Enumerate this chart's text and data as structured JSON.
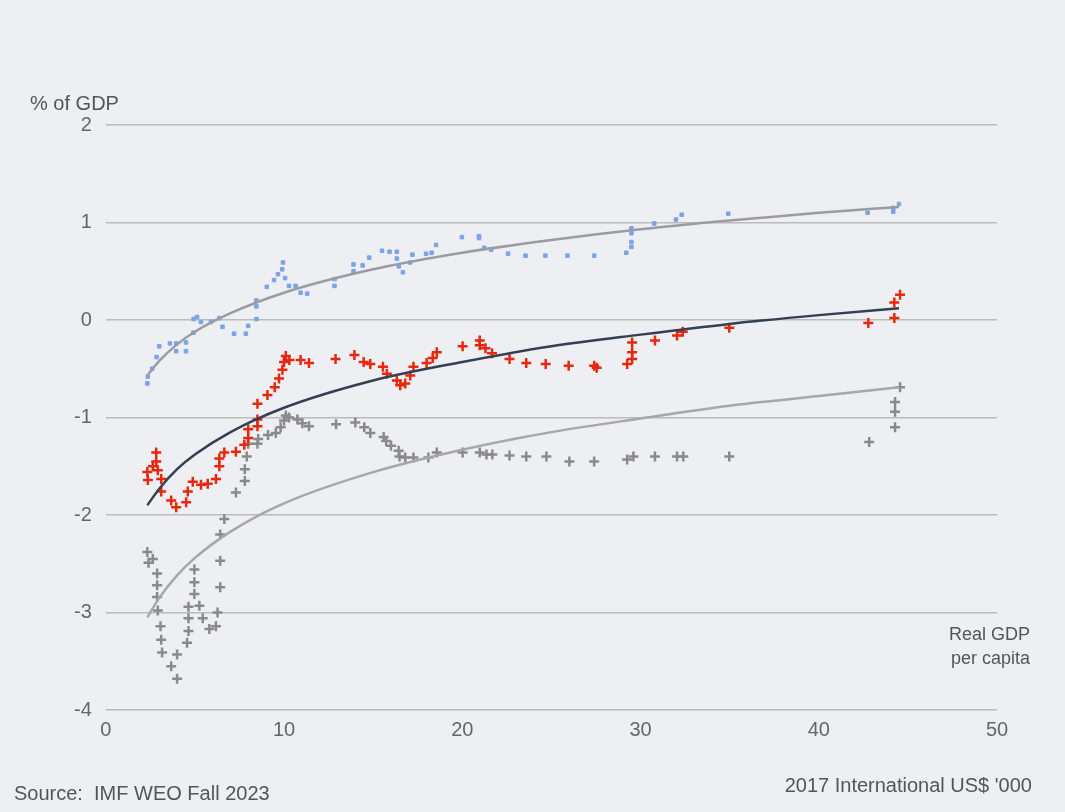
{
  "chart_data": {
    "type": "scatter",
    "ylabel": "% of GDP",
    "xlabel": "2017 International US$ '000",
    "annotations": [
      "Real GDP per capita",
      "Source:  IMF WEO Fall 2023"
    ],
    "xlim": [
      0,
      50
    ],
    "xticks": [
      0,
      10,
      20,
      30,
      40,
      50
    ],
    "ylim": [
      -4,
      2
    ],
    "yticks": [
      -4,
      -3,
      -2,
      -1,
      0,
      1,
      2
    ],
    "grid": "y",
    "legend": false,
    "series": [
      {
        "color": "#7ba3e8",
        "marker": "square",
        "x": [
          2.33,
          2.36,
          2.6,
          2.85,
          3.0,
          3.6,
          3.95,
          3.95,
          4.5,
          4.5,
          4.92,
          4.93,
          5.12,
          5.34,
          5.9,
          6.37,
          6.55,
          7.2,
          7.86,
          7.99,
          8.45,
          8.45,
          8.45,
          9.03,
          9.44,
          9.66,
          9.94,
          9.9,
          10.06,
          10.28,
          10.65,
          10.93,
          11.3,
          12.83,
          12.83,
          13.9,
          13.9,
          14.41,
          14.78,
          15.5,
          15.92,
          16.33,
          16.33,
          16.44,
          16.67,
          17.08,
          17.2,
          17.97,
          18.28,
          18.53,
          19.98,
          20.94,
          20.94,
          21.23,
          21.62,
          22.57,
          23.55,
          24.66,
          25.9,
          27.4,
          29.2,
          29.49,
          29.49,
          29.49,
          29.49,
          30.77,
          31.99,
          32.31,
          34.92,
          42.74,
          44.18,
          44.18,
          44.5
        ],
        "values": [
          -0.65,
          -0.58,
          -0.5,
          -0.38,
          -0.27,
          -0.24,
          -0.32,
          -0.24,
          -0.32,
          -0.23,
          -0.13,
          0.01,
          0.03,
          -0.02,
          -0.02,
          0.02,
          -0.07,
          -0.14,
          -0.14,
          -0.06,
          0.01,
          0.14,
          0.2,
          0.34,
          0.41,
          0.47,
          0.59,
          0.52,
          0.43,
          0.35,
          0.35,
          0.28,
          0.27,
          0.35,
          0.42,
          0.5,
          0.57,
          0.56,
          0.64,
          0.71,
          0.7,
          0.7,
          0.63,
          0.55,
          0.49,
          0.59,
          0.67,
          0.68,
          0.69,
          0.77,
          0.85,
          0.86,
          0.84,
          0.74,
          0.72,
          0.68,
          0.66,
          0.66,
          0.66,
          0.66,
          0.69,
          0.75,
          0.8,
          0.89,
          0.94,
          0.99,
          1.03,
          1.08,
          1.09,
          1.1,
          1.11,
          1.15,
          1.19
        ]
      },
      {
        "color": "#e8270f",
        "marker": "cross",
        "x": [
          2.33,
          2.36,
          2.64,
          2.83,
          2.83,
          2.92,
          3.11,
          3.11,
          3.67,
          3.95,
          4.51,
          4.6,
          4.88,
          5.34,
          5.72,
          6.18,
          6.37,
          6.37,
          6.65,
          7.3,
          7.77,
          7.99,
          7.99,
          8.51,
          8.51,
          8.51,
          9.07,
          9.48,
          9.72,
          9.91,
          10.0,
          10.1,
          10.3,
          10.93,
          11.4,
          12.89,
          13.95,
          14.47,
          14.84,
          15.55,
          15.77,
          16.33,
          16.52,
          16.8,
          17.08,
          17.26,
          18.0,
          18.34,
          18.57,
          20.02,
          20.98,
          20.98,
          21.3,
          21.67,
          22.65,
          23.59,
          24.68,
          25.97,
          27.4,
          27.54,
          29.25,
          29.53,
          29.53,
          29.53,
          30.81,
          32.05,
          32.37,
          34.98,
          42.78,
          44.24,
          44.24,
          44.56
        ],
        "values": [
          -1.56,
          -1.64,
          -1.5,
          -1.36,
          -1.45,
          -1.54,
          -1.63,
          -1.76,
          -1.85,
          -1.92,
          -1.87,
          -1.76,
          -1.66,
          -1.69,
          -1.68,
          -1.63,
          -1.5,
          -1.42,
          -1.36,
          -1.35,
          -1.28,
          -1.21,
          -1.12,
          -1.09,
          -1.02,
          -0.86,
          -0.77,
          -0.69,
          -0.6,
          -0.51,
          -0.43,
          -0.37,
          -0.41,
          -0.41,
          -0.44,
          -0.4,
          -0.36,
          -0.43,
          -0.45,
          -0.48,
          -0.55,
          -0.62,
          -0.67,
          -0.65,
          -0.57,
          -0.48,
          -0.44,
          -0.39,
          -0.33,
          -0.27,
          -0.21,
          -0.26,
          -0.29,
          -0.34,
          -0.4,
          -0.44,
          -0.45,
          -0.47,
          -0.47,
          -0.49,
          -0.45,
          -0.4,
          -0.33,
          -0.23,
          -0.21,
          -0.16,
          -0.12,
          -0.08,
          -0.03,
          0.02,
          0.18,
          0.26
        ]
      },
      {
        "color": "#8a8a8c",
        "marker": "cross",
        "x": [
          2.33,
          2.4,
          2.64,
          2.88,
          2.88,
          2.88,
          2.92,
          3.07,
          3.11,
          3.16,
          3.67,
          4.0,
          4.0,
          4.56,
          4.64,
          4.64,
          4.64,
          4.97,
          4.97,
          4.97,
          5.25,
          5.44,
          5.81,
          6.18,
          6.27,
          6.42,
          6.42,
          6.42,
          6.65,
          7.3,
          7.8,
          7.8,
          7.91,
          7.99,
          8.51,
          8.55,
          9.1,
          9.54,
          9.81,
          10.0,
          10.1,
          10.28,
          10.75,
          11.03,
          11.4,
          12.92,
          14.0,
          14.5,
          14.84,
          15.59,
          15.73,
          16.0,
          16.43,
          16.48,
          16.8,
          17.26,
          18.1,
          18.57,
          20.02,
          20.98,
          21.36,
          21.69,
          22.65,
          23.59,
          24.72,
          26.01,
          27.4,
          29.25,
          29.6,
          30.81,
          32.05,
          32.4,
          34.98,
          42.83,
          44.28,
          44.28,
          44.28,
          44.56
        ],
        "values": [
          -2.38,
          -2.49,
          -2.45,
          -2.6,
          -2.72,
          -2.84,
          -2.98,
          -3.14,
          -3.28,
          -3.41,
          -3.55,
          -3.68,
          -3.43,
          -3.31,
          -3.19,
          -3.06,
          -2.94,
          -2.81,
          -2.69,
          -2.56,
          -2.93,
          -3.06,
          -3.17,
          -3.14,
          -3.0,
          -2.74,
          -2.47,
          -2.2,
          -2.04,
          -1.77,
          -1.65,
          -1.53,
          -1.4,
          -1.27,
          -1.27,
          -1.22,
          -1.18,
          -1.16,
          -1.1,
          -1.03,
          -0.98,
          -1.0,
          -1.02,
          -1.06,
          -1.09,
          -1.07,
          -1.05,
          -1.1,
          -1.16,
          -1.2,
          -1.24,
          -1.29,
          -1.34,
          -1.4,
          -1.41,
          -1.41,
          -1.41,
          -1.36,
          -1.36,
          -1.36,
          -1.38,
          -1.38,
          -1.39,
          -1.4,
          -1.4,
          -1.45,
          -1.45,
          -1.43,
          -1.4,
          -1.4,
          -1.4,
          -1.4,
          -1.4,
          -1.25,
          -1.1,
          -0.94,
          -0.84,
          -0.69
        ]
      },
      {
        "type": "line",
        "color": "#9a9ca4",
        "marker": "none",
        "line_style": "solid",
        "x": [
          2.33,
          3,
          4,
          5,
          7,
          10,
          15,
          20,
          25,
          30,
          35,
          40,
          44.5
        ],
        "values": [
          -0.57,
          -0.42,
          -0.25,
          -0.12,
          0.07,
          0.28,
          0.52,
          0.69,
          0.82,
          0.93,
          1.02,
          1.1,
          1.16
        ]
      },
      {
        "type": "line",
        "color": "#353f52",
        "marker": "none",
        "line_style": "solid",
        "x": [
          2.33,
          3,
          4,
          5,
          7,
          10,
          15,
          20,
          25,
          30,
          35,
          40,
          44.5
        ],
        "values": [
          -1.9,
          -1.73,
          -1.53,
          -1.38,
          -1.15,
          -0.9,
          -0.62,
          -0.43,
          -0.27,
          -0.15,
          -0.04,
          0.05,
          0.12
        ]
      },
      {
        "type": "line",
        "color": "#a4a7b0",
        "marker": "none",
        "line_style": "solid",
        "x": [
          2.33,
          3,
          4,
          5,
          7,
          10,
          15,
          20,
          25,
          30,
          35,
          40,
          44.5
        ],
        "values": [
          -3.05,
          -2.85,
          -2.62,
          -2.44,
          -2.17,
          -1.88,
          -1.56,
          -1.33,
          -1.15,
          -1.01,
          -0.88,
          -0.78,
          -0.69
        ]
      }
    ]
  }
}
